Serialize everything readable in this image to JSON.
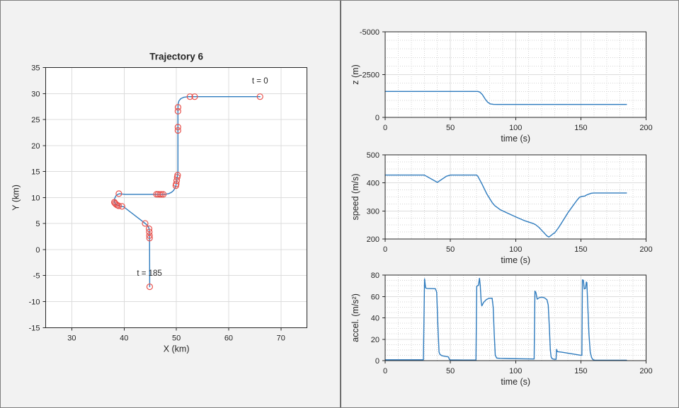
{
  "window": {
    "background": "#f2f2f2",
    "border_color": "#7f7f7f",
    "divider_color": "#6e6e6e"
  },
  "colors": {
    "line": "#2e7bbe",
    "marker": "#e8534e",
    "axis": "#262626",
    "text": "#262626",
    "plot_bg": "#ffffff",
    "grid_major": "#dcdcdc",
    "grid_minor": "#d4d4d4"
  },
  "chart_data": [
    {
      "name": "trajectory",
      "type": "line",
      "title": "Trajectory 6",
      "xlabel": "X (km)",
      "ylabel": "Y (km)",
      "xlim": [
        25,
        75
      ],
      "ylim": [
        -15,
        35
      ],
      "xticks": [
        30,
        40,
        50,
        60,
        70
      ],
      "yticks": [
        -15,
        -10,
        -5,
        0,
        5,
        10,
        15,
        20,
        25,
        30,
        35
      ],
      "grid": {
        "major": true,
        "minor": false
      },
      "annotations": [
        {
          "text": "t = 0",
          "x": 66.0,
          "y": 32.5
        },
        {
          "text": "t = 185",
          "x": 44.85,
          "y": -4.5
        }
      ],
      "line": [
        [
          66,
          29.4
        ],
        [
          53.5,
          29.4
        ],
        [
          52.3,
          29.4
        ],
        [
          51.4,
          29.28
        ],
        [
          50.85,
          29.02
        ],
        [
          50.5,
          28.6
        ],
        [
          50.33,
          28.0
        ],
        [
          50.3,
          27.0
        ],
        [
          50.3,
          15.2
        ],
        [
          50.24,
          14.3
        ],
        [
          50.16,
          13.9
        ],
        [
          50.06,
          13.25
        ],
        [
          49.97,
          12.62
        ],
        [
          49.9,
          12.28
        ],
        [
          49.72,
          11.8
        ],
        [
          49.45,
          11.35
        ],
        [
          49.05,
          11.0
        ],
        [
          48.55,
          10.76
        ],
        [
          48.0,
          10.65
        ],
        [
          47.4,
          10.62
        ],
        [
          40.3,
          10.62
        ],
        [
          39.6,
          10.68
        ],
        [
          39.15,
          10.75
        ],
        [
          38.75,
          10.6
        ],
        [
          38.42,
          10.3
        ],
        [
          38.2,
          9.85
        ],
        [
          38.12,
          9.4
        ],
        [
          38.16,
          9.05
        ],
        [
          38.32,
          8.82
        ],
        [
          38.6,
          8.6
        ],
        [
          38.95,
          8.42
        ],
        [
          39.45,
          8.3
        ],
        [
          39.85,
          8.27
        ],
        [
          44.03,
          5.03
        ],
        [
          44.45,
          4.65
        ],
        [
          44.68,
          4.3
        ],
        [
          44.78,
          4.0
        ],
        [
          44.82,
          3.4
        ],
        [
          44.85,
          2.7
        ],
        [
          44.87,
          2.2
        ],
        [
          44.9,
          -7.15
        ]
      ],
      "markers": [
        [
          66,
          29.4
        ],
        [
          53.5,
          29.4
        ],
        [
          52.6,
          29.4
        ],
        [
          50.32,
          27.35
        ],
        [
          50.3,
          26.6
        ],
        [
          50.3,
          23.55
        ],
        [
          50.3,
          22.9
        ],
        [
          50.24,
          14.3
        ],
        [
          50.16,
          13.9
        ],
        [
          50.06,
          13.25
        ],
        [
          49.97,
          12.62
        ],
        [
          49.9,
          12.28
        ],
        [
          47.5,
          10.62
        ],
        [
          47.15,
          10.62
        ],
        [
          46.85,
          10.62
        ],
        [
          46.5,
          10.63
        ],
        [
          46.2,
          10.64
        ],
        [
          39.0,
          10.75
        ],
        [
          38.14,
          9.1
        ],
        [
          38.28,
          8.9
        ],
        [
          38.46,
          8.72
        ],
        [
          38.68,
          8.55
        ],
        [
          38.95,
          8.42
        ],
        [
          39.6,
          8.3
        ],
        [
          44.03,
          5.03
        ],
        [
          44.78,
          4.0
        ],
        [
          44.82,
          3.4
        ],
        [
          44.85,
          2.7
        ],
        [
          44.87,
          2.2
        ],
        [
          44.9,
          -7.15
        ]
      ]
    },
    {
      "name": "z",
      "type": "line",
      "xlabel": "time (s)",
      "ylabel": "z (m)",
      "xlim": [
        0,
        200
      ],
      "ylim": [
        0,
        -5000
      ],
      "xticks": [
        0,
        50,
        100,
        150,
        200
      ],
      "yticks": [
        0,
        -2500,
        -5000
      ],
      "grid": {
        "major": true,
        "minor": true,
        "xminor": 10,
        "yminor": 500
      },
      "line": [
        [
          0,
          -1515
        ],
        [
          71,
          -1515
        ],
        [
          72.5,
          -1480
        ],
        [
          74.5,
          -1330
        ],
        [
          76.5,
          -1090
        ],
        [
          78.5,
          -890
        ],
        [
          80.5,
          -790
        ],
        [
          83,
          -760
        ],
        [
          86,
          -755
        ],
        [
          185,
          -755
        ]
      ]
    },
    {
      "name": "speed",
      "type": "line",
      "xlabel": "time (s)",
      "ylabel": "speed (m/s)",
      "xlim": [
        0,
        200
      ],
      "ylim": [
        200,
        500
      ],
      "xticks": [
        0,
        50,
        100,
        150,
        200
      ],
      "yticks": [
        200,
        300,
        400,
        500
      ],
      "grid": {
        "major": true,
        "minor": true,
        "xminor": 10,
        "yminor": 25
      },
      "line": [
        [
          0,
          428
        ],
        [
          30,
          428
        ],
        [
          40,
          402
        ],
        [
          47,
          424
        ],
        [
          50,
          428
        ],
        [
          70,
          428
        ],
        [
          71,
          424
        ],
        [
          74,
          398
        ],
        [
          78,
          360
        ],
        [
          82,
          330
        ],
        [
          84,
          319
        ],
        [
          88,
          305
        ],
        [
          93,
          294
        ],
        [
          100,
          279
        ],
        [
          107,
          265
        ],
        [
          113,
          256
        ],
        [
          115,
          252
        ],
        [
          118,
          241
        ],
        [
          122,
          221
        ],
        [
          124,
          211
        ],
        [
          125.5,
          207
        ],
        [
          127,
          212
        ],
        [
          128.5,
          218
        ],
        [
          130,
          222
        ],
        [
          133,
          241
        ],
        [
          136,
          263
        ],
        [
          140,
          293
        ],
        [
          144,
          319
        ],
        [
          147,
          338
        ],
        [
          149,
          349
        ],
        [
          151,
          352
        ],
        [
          153,
          353
        ],
        [
          154,
          356
        ],
        [
          156,
          360
        ],
        [
          158,
          363
        ],
        [
          160,
          364
        ],
        [
          185,
          364
        ]
      ]
    },
    {
      "name": "accel",
      "type": "line",
      "xlabel": "time (s)",
      "ylabel": "accel. (m/s²)",
      "xlim": [
        0,
        200
      ],
      "ylim": [
        0,
        80
      ],
      "xticks": [
        0,
        50,
        100,
        150,
        200
      ],
      "yticks": [
        0,
        20,
        40,
        60,
        80
      ],
      "grid": {
        "major": true,
        "minor": true,
        "xminor": 10,
        "yminor": 5
      },
      "line": [
        [
          0,
          0.8
        ],
        [
          29.3,
          0.8
        ],
        [
          30.2,
          76.5
        ],
        [
          31,
          68
        ],
        [
          32,
          67.5
        ],
        [
          38.5,
          67.2
        ],
        [
          39.5,
          64
        ],
        [
          40.5,
          30
        ],
        [
          41.3,
          8
        ],
        [
          42,
          5.8
        ],
        [
          43.5,
          4.6
        ],
        [
          46,
          4
        ],
        [
          48,
          3.6
        ],
        [
          48.6,
          3.3
        ],
        [
          49.2,
          1.2
        ],
        [
          50,
          0.7
        ],
        [
          60,
          0.55
        ],
        [
          69.6,
          0.5
        ],
        [
          70.2,
          69.5
        ],
        [
          71.5,
          70.5
        ],
        [
          72.3,
          77
        ],
        [
          72.9,
          70
        ],
        [
          73.6,
          55
        ],
        [
          74.1,
          51.2
        ],
        [
          75.5,
          54.5
        ],
        [
          77.5,
          57
        ],
        [
          79.5,
          58.3
        ],
        [
          82,
          58.4
        ],
        [
          82.8,
          50
        ],
        [
          83.6,
          25
        ],
        [
          84.4,
          5
        ],
        [
          85.5,
          2.4
        ],
        [
          88,
          2.1
        ],
        [
          95,
          1.9
        ],
        [
          105,
          1.7
        ],
        [
          114.2,
          1.5
        ],
        [
          114.8,
          65
        ],
        [
          115.6,
          63.5
        ],
        [
          116.5,
          57.5
        ],
        [
          118,
          58.8
        ],
        [
          120,
          59.3
        ],
        [
          122,
          58.8
        ],
        [
          124,
          57
        ],
        [
          125,
          52
        ],
        [
          125.9,
          30
        ],
        [
          126.6,
          10
        ],
        [
          127.2,
          3.5
        ],
        [
          128,
          1.8
        ],
        [
          129.5,
          1.3
        ],
        [
          131,
          1.2
        ],
        [
          131.4,
          10.5
        ],
        [
          132,
          8.4
        ],
        [
          135,
          8
        ],
        [
          140,
          7
        ],
        [
          145,
          6
        ],
        [
          149.5,
          5.1
        ],
        [
          150.8,
          5
        ],
        [
          151.2,
          75.5
        ],
        [
          152,
          75
        ],
        [
          152.6,
          67
        ],
        [
          153.6,
          67.5
        ],
        [
          154.2,
          73.5
        ],
        [
          154.6,
          73
        ],
        [
          155.2,
          55
        ],
        [
          156.2,
          25
        ],
        [
          157.2,
          8
        ],
        [
          158.2,
          3
        ],
        [
          159.2,
          1
        ],
        [
          160.5,
          0.45
        ],
        [
          185,
          0.4
        ]
      ]
    }
  ]
}
